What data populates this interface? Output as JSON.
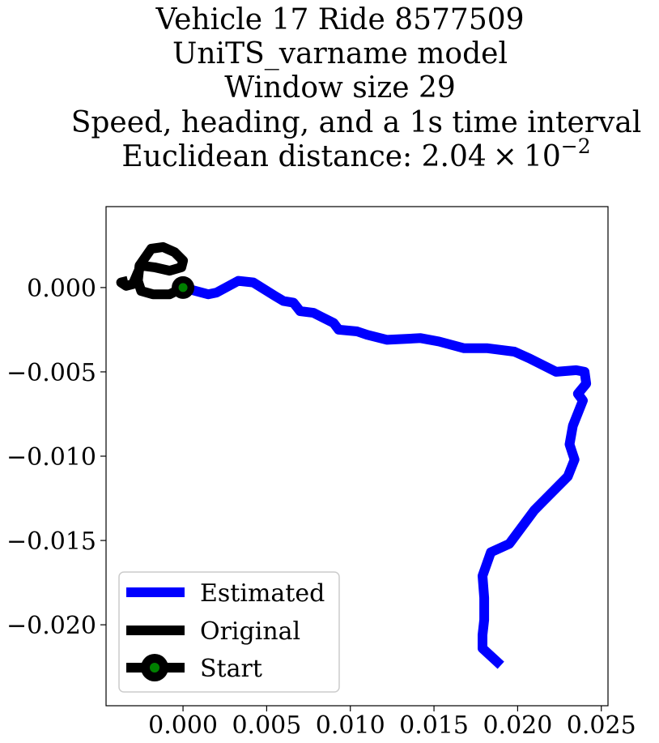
{
  "chart_data": {
    "type": "line",
    "title_lines": [
      "Vehicle 17 Ride 8577509",
      "UniTS_varname model",
      "Window size 29",
      "Speed, heading, and a 1s time interval"
    ],
    "distance_label": "Euclidean distance: ",
    "distance_mantissa": "2.04",
    "distance_times": "×",
    "distance_base": "10",
    "distance_exponent": "−2",
    "xlim": [
      -0.0046,
      0.0254
    ],
    "ylim": [
      -0.0248,
      0.0048
    ],
    "xticks": [
      0.0,
      0.005,
      0.01,
      0.015,
      0.02,
      0.025
    ],
    "xtick_labels": [
      "0.000",
      "0.005",
      "0.010",
      "0.015",
      "0.020",
      "0.025"
    ],
    "yticks": [
      0.0,
      -0.005,
      -0.01,
      -0.015,
      -0.02
    ],
    "ytick_labels": [
      "0.000",
      "−0.005",
      "−0.010",
      "−0.015",
      "−0.020"
    ],
    "grid": false,
    "legend_position": "lower-left",
    "series": [
      {
        "name": "Estimated",
        "color": "#0000ff",
        "x": [
          0.0,
          0.0015,
          0.002,
          0.0033,
          0.0042,
          0.0055,
          0.006,
          0.0066,
          0.007,
          0.0078,
          0.0082,
          0.009,
          0.0093,
          0.0104,
          0.011,
          0.0122,
          0.0142,
          0.0153,
          0.0168,
          0.0182,
          0.0198,
          0.0207,
          0.0223,
          0.0235,
          0.024,
          0.0241,
          0.0236,
          0.0239,
          0.0233,
          0.0231,
          0.0233,
          0.0234,
          0.023,
          0.0215,
          0.021,
          0.0195,
          0.0184,
          0.0179,
          0.018,
          0.018,
          0.0179,
          0.0179,
          0.019
        ],
        "y": [
          0.0,
          -0.0004,
          -0.0003,
          0.0004,
          0.0003,
          -0.0005,
          -0.0008,
          -0.0009,
          -0.0014,
          -0.0015,
          -0.0017,
          -0.0021,
          -0.0025,
          -0.0026,
          -0.0028,
          -0.0031,
          -0.003,
          -0.0032,
          -0.0036,
          -0.0036,
          -0.0038,
          -0.0042,
          -0.005,
          -0.0049,
          -0.005,
          -0.0057,
          -0.0063,
          -0.0067,
          -0.0082,
          -0.0093,
          -0.0099,
          -0.0102,
          -0.0112,
          -0.0127,
          -0.0132,
          -0.0152,
          -0.0157,
          -0.0171,
          -0.0184,
          -0.0197,
          -0.0206,
          -0.0214,
          -0.0224
        ]
      },
      {
        "name": "Original",
        "color": "#000000",
        "x": [
          0.0,
          -0.0008,
          -0.0018,
          -0.0025,
          -0.0027,
          -0.0026,
          -0.0019,
          -0.0012,
          -0.0005,
          0.0,
          -0.0001,
          -0.0008,
          -0.0017,
          -0.0025,
          -0.0027,
          -0.003,
          -0.0034,
          -0.0037,
          -0.0033
        ],
        "y": [
          0.0,
          -0.0004,
          -0.0004,
          -0.0002,
          0.0004,
          0.0013,
          0.0023,
          0.0024,
          0.0021,
          0.0016,
          0.0012,
          0.001,
          0.0012,
          0.0013,
          0.0009,
          0.0002,
          0.0001,
          0.0003,
          0.0004
        ]
      }
    ],
    "start": {
      "name": "Start",
      "x": 0.0,
      "y": 0.0,
      "marker_color": "#008000",
      "edge_color": "#000000"
    }
  }
}
